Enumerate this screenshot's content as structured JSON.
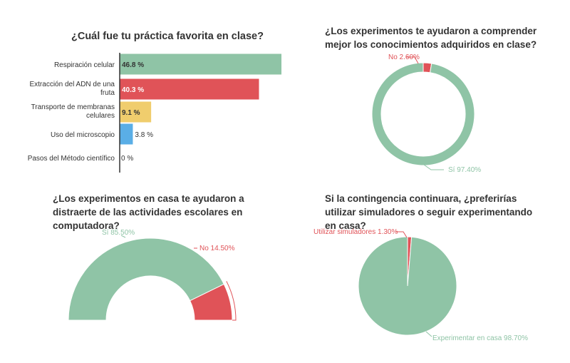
{
  "colors": {
    "green": "#8fc4a6",
    "red": "#e05358",
    "yellow": "#f0cd6d",
    "blue": "#5aaee6",
    "text": "#333333",
    "axis": "#333333"
  },
  "chart_data": [
    {
      "type": "bar",
      "orientation": "horizontal",
      "title": "¿Cuál fue tu práctica favorita en clase?",
      "categories": [
        "Respiración celular",
        "Extracción del ADN de una fruta",
        "Transporte de membranas celulares",
        "Uso del microscopio",
        "Pasos del Método científico"
      ],
      "values": [
        46.8,
        40.3,
        9.1,
        3.8,
        0
      ],
      "value_labels": [
        "46.8 %",
        "40.3 %",
        "9.1 %",
        "3.8 %",
        "0 %"
      ],
      "bar_colors": [
        "#8fc4a6",
        "#e05358",
        "#f0cd6d",
        "#5aaee6",
        "#8fc4a6"
      ],
      "xlim": [
        0,
        46.8
      ],
      "grid": false
    },
    {
      "type": "pie",
      "subtype": "donut",
      "title": "¿Los experimentos te ayudaron a comprender mejor los conocimientos adquiridos en clase?",
      "slices": [
        {
          "label": "Sí",
          "value": 97.4,
          "display": "Sí 97.40%",
          "color": "#8fc4a6"
        },
        {
          "label": "No",
          "value": 2.6,
          "display": "No 2.60%",
          "color": "#e05358"
        }
      ]
    },
    {
      "type": "pie",
      "subtype": "semi-donut",
      "title": "¿Los experimentos en casa te ayudaron a distraerte de las actividades escolares en computadora?",
      "slices": [
        {
          "label": "Sí",
          "value": 85.5,
          "display": "Sí 85.50%",
          "color": "#8fc4a6"
        },
        {
          "label": "No",
          "value": 14.5,
          "display": "No 14.50%",
          "color": "#e05358"
        }
      ]
    },
    {
      "type": "pie",
      "title": "Si la contingencia continuara, ¿preferirías utilizar simuladores o seguir experimentando en casa?",
      "slices": [
        {
          "label": "Experimentar en casa",
          "value": 98.7,
          "display": "Experimentar en casa 98.70%",
          "color": "#8fc4a6"
        },
        {
          "label": "Utilizar simuladores",
          "value": 1.3,
          "display": "Utilizar simuladores 1.30%",
          "color": "#e05358"
        }
      ]
    }
  ]
}
